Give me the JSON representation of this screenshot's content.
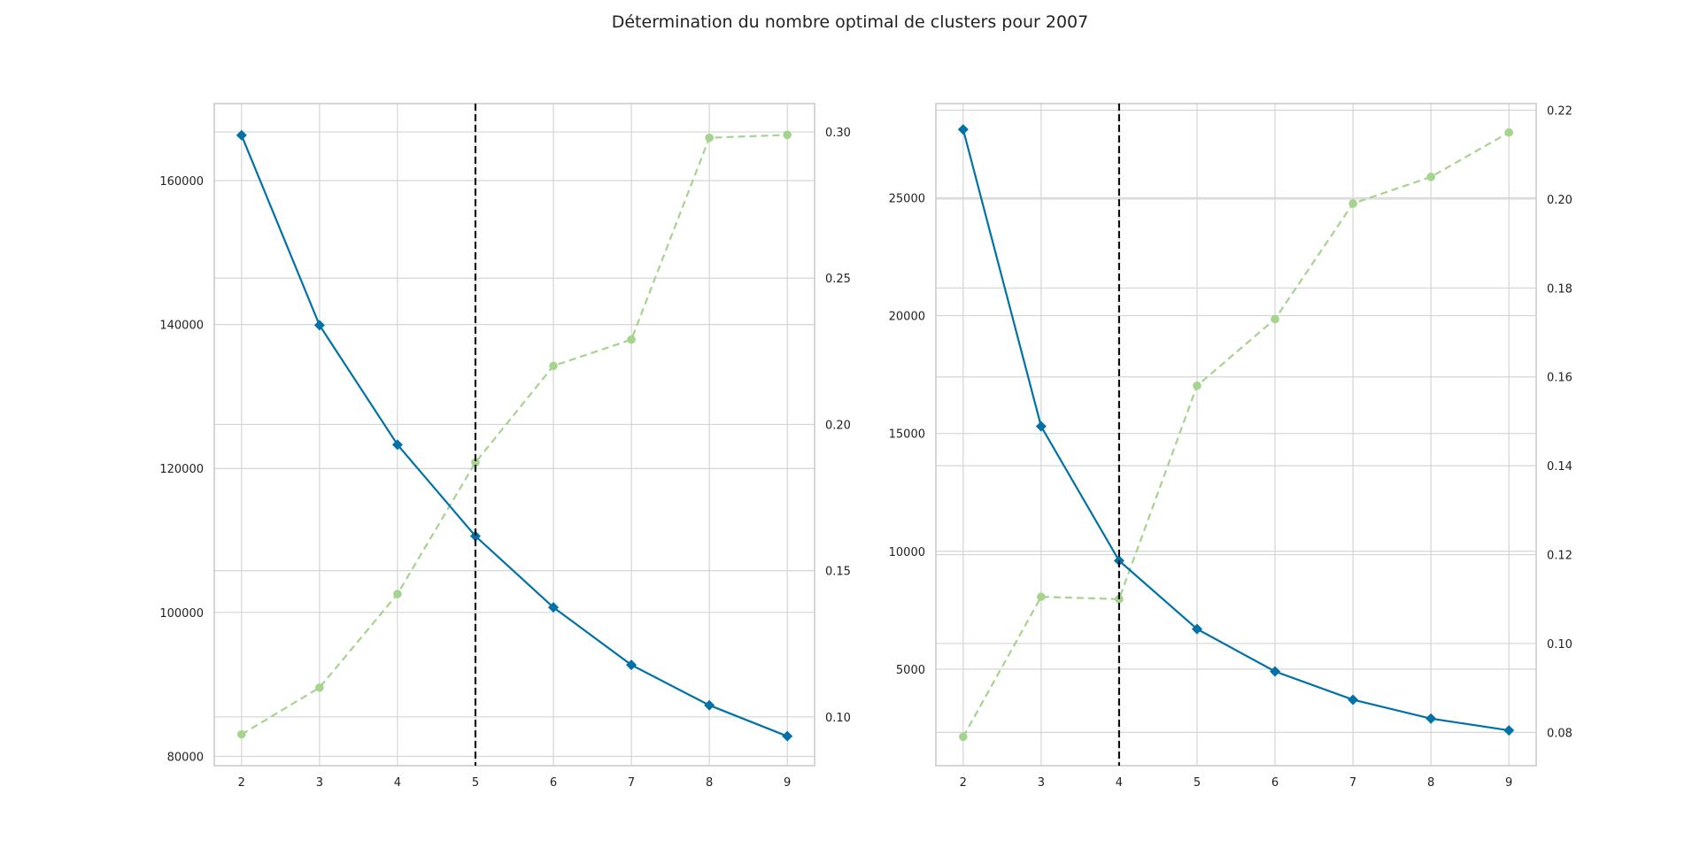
{
  "figure": {
    "title": "Détermination du nombre optimal de clusters pour 2007"
  },
  "colors": {
    "distortion": "#0072a8",
    "fit_time": "#a6d48f",
    "elbow": "#111111",
    "grid": "#d5d5d5",
    "spine": "#c8c8c8",
    "tick_text": "#222222"
  },
  "chart_data": [
    {
      "type": "line",
      "title": "",
      "xlabel": "",
      "ylabel": "",
      "y2label": "",
      "grid": true,
      "x": [
        2,
        3,
        4,
        5,
        6,
        7,
        8,
        9
      ],
      "xlim": [
        1.65,
        9.35
      ],
      "x_ticks": [
        2,
        3,
        4,
        5,
        6,
        7,
        8,
        9
      ],
      "elbow_x": 5,
      "y_left": {
        "ylim": [
          78700,
          170700
        ],
        "ticks": [
          80000,
          100000,
          120000,
          140000,
          160000
        ],
        "series": {
          "marker": "diamond",
          "line_style": "solid",
          "values": [
            166300,
            139900,
            123300,
            110600,
            100700,
            92700,
            87100,
            82800
          ]
        }
      },
      "y_right": {
        "ylim": [
          0.0833,
          0.3097
        ],
        "ticks": [
          0.1,
          0.15,
          0.2,
          0.25,
          0.3
        ],
        "series": {
          "marker": "circle",
          "line_style": "dashed",
          "values": [
            0.094,
            0.11,
            0.142,
            0.187,
            0.22,
            0.229,
            0.298,
            0.299
          ]
        }
      }
    },
    {
      "type": "line",
      "title": "",
      "xlabel": "",
      "ylabel": "",
      "y2label": "",
      "grid": true,
      "x": [
        2,
        3,
        4,
        5,
        6,
        7,
        8,
        9
      ],
      "xlim": [
        1.65,
        9.35
      ],
      "x_ticks": [
        2,
        3,
        4,
        5,
        6,
        7,
        8,
        9
      ],
      "elbow_x": 4,
      "y_left": {
        "ylim": [
          900,
          29000
        ],
        "ticks": [
          5000,
          10000,
          15000,
          20000,
          25000
        ],
        "series": {
          "marker": "diamond",
          "line_style": "solid",
          "values": [
            27900,
            15300,
            9600,
            6700,
            4900,
            3700,
            2900,
            2400
          ]
        }
      },
      "y_right": {
        "ylim": [
          0.0725,
          0.2215
        ],
        "ticks": [
          0.08,
          0.1,
          0.12,
          0.14,
          0.16,
          0.18,
          0.2,
          0.22
        ],
        "series": {
          "marker": "circle",
          "line_style": "dashed",
          "values": [
            0.079,
            0.1105,
            0.11,
            0.158,
            0.173,
            0.199,
            0.205,
            0.215
          ]
        }
      }
    }
  ]
}
